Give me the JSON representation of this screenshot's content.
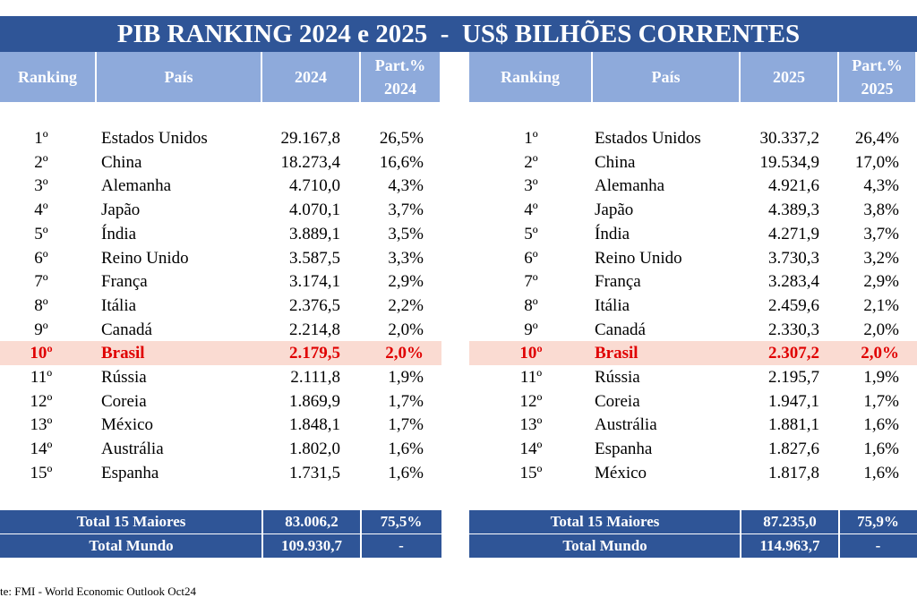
{
  "title": "PIB RANKING 2024 e 2025  -  US$ BILHÕES CORRENTES",
  "tables": [
    {
      "headers": [
        "Ranking",
        "País",
        "2024",
        "Part.%\n2024"
      ],
      "rows": [
        [
          "1º",
          "Estados Unidos",
          "29.167,8",
          "26,5%"
        ],
        [
          "2º",
          "China",
          "18.273,4",
          "16,6%"
        ],
        [
          "3º",
          "Alemanha",
          "4.710,0",
          "4,3%"
        ],
        [
          "4º",
          "Japão",
          "4.070,1",
          "3,7%"
        ],
        [
          "5º",
          "Índia",
          "3.889,1",
          "3,5%"
        ],
        [
          "6º",
          "Reino Unido",
          "3.587,5",
          "3,3%"
        ],
        [
          "7º",
          "França",
          "3.174,1",
          "2,9%"
        ],
        [
          "8º",
          "Itália",
          "2.376,5",
          "2,2%"
        ],
        [
          "9º",
          "Canadá",
          "2.214,8",
          "2,0%"
        ],
        [
          "10º",
          "Brasil",
          "2.179,5",
          "2,0%"
        ],
        [
          "11º",
          "Rússia",
          "2.111,8",
          "1,9%"
        ],
        [
          "12º",
          "Coreia",
          "1.869,9",
          "1,7%"
        ],
        [
          "13º",
          "México",
          "1.848,1",
          "1,7%"
        ],
        [
          "14º",
          "Austrália",
          "1.802,0",
          "1,6%"
        ],
        [
          "15º",
          "Espanha",
          "1.731,5",
          "1,6%"
        ]
      ],
      "totals": [
        [
          "Total 15 Maiores",
          "83.006,2",
          "75,5%"
        ],
        [
          "Total Mundo",
          "109.930,7",
          "-"
        ]
      ]
    },
    {
      "headers": [
        "Ranking",
        "País",
        "2025",
        "Part.%\n2025"
      ],
      "rows": [
        [
          "1º",
          "Estados Unidos",
          "30.337,2",
          "26,4%"
        ],
        [
          "2º",
          "China",
          "19.534,9",
          "17,0%"
        ],
        [
          "3º",
          "Alemanha",
          "4.921,6",
          "4,3%"
        ],
        [
          "4º",
          "Japão",
          "4.389,3",
          "3,8%"
        ],
        [
          "5º",
          "Índia",
          "4.271,9",
          "3,7%"
        ],
        [
          "6º",
          "Reino Unido",
          "3.730,3",
          "3,2%"
        ],
        [
          "7º",
          "França",
          "3.283,4",
          "2,9%"
        ],
        [
          "8º",
          "Itália",
          "2.459,6",
          "2,1%"
        ],
        [
          "9º",
          "Canadá",
          "2.330,3",
          "2,0%"
        ],
        [
          "10º",
          "Brasil",
          "2.307,2",
          "2,0%"
        ],
        [
          "11º",
          "Rússia",
          "2.195,7",
          "1,9%"
        ],
        [
          "12º",
          "Coreia",
          "1.947,1",
          "1,7%"
        ],
        [
          "13º",
          "Austrália",
          "1.881,1",
          "1,6%"
        ],
        [
          "14º",
          "Espanha",
          "1.827,6",
          "1,6%"
        ],
        [
          "15º",
          "México",
          "1.817,8",
          "1,6%"
        ]
      ],
      "totals": [
        [
          "Total 15 Maiores",
          "87.235,0",
          "75,9%"
        ],
        [
          "Total Mundo",
          "114.963,7",
          "-"
        ]
      ]
    }
  ],
  "source": "te: FMI - World Economic Outlook Oct24"
}
